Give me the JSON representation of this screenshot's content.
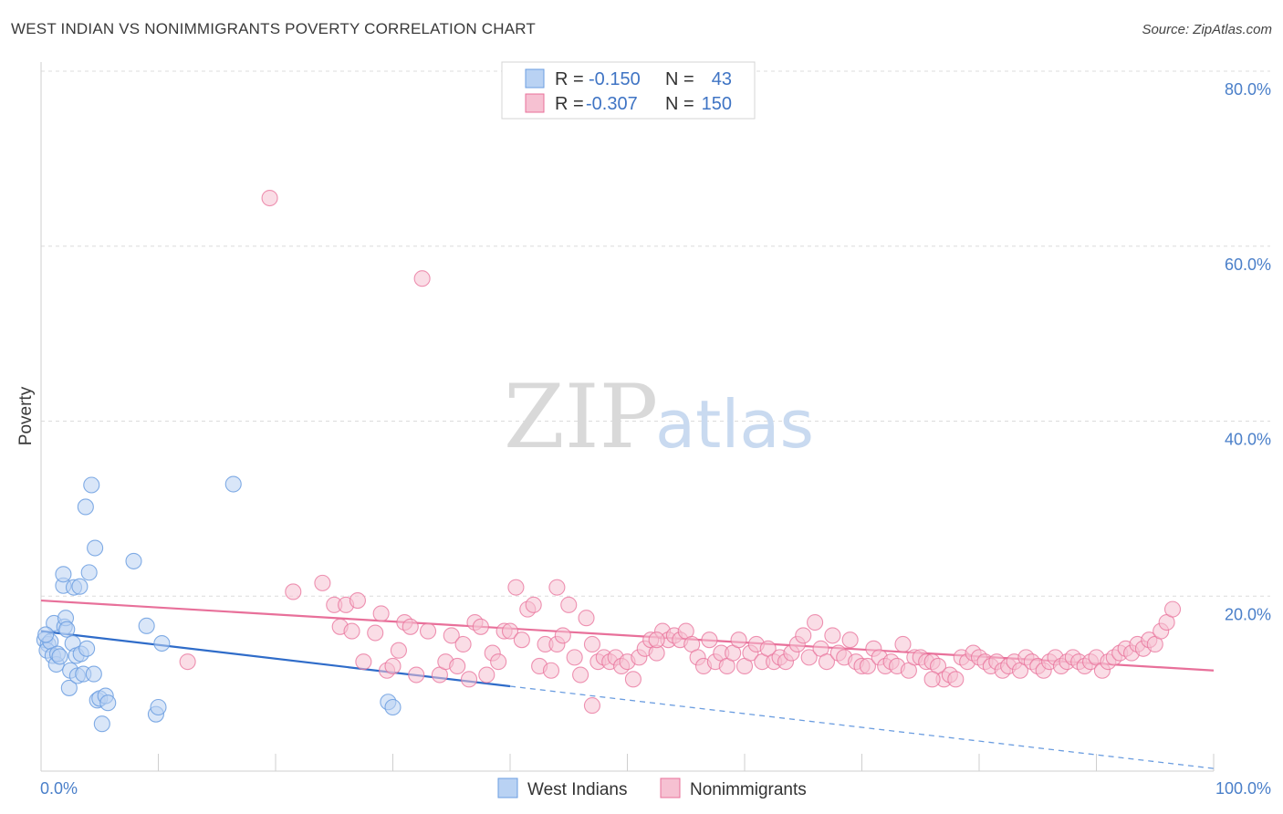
{
  "title": "WEST INDIAN VS NONIMMIGRANTS POVERTY CORRELATION CHART",
  "source": "Source: ZipAtlas.com",
  "watermark": {
    "zip": "ZIP",
    "atlas": "atlas"
  },
  "colors": {
    "blue": "#6b9de0",
    "blue_fill": "#b9d2f3",
    "pink": "#e8709a",
    "pink_fill": "#f6c1d2",
    "tick": "#4a7fc9"
  },
  "legend": {
    "r_label": "R =",
    "n_label": "N =",
    "rows": [
      {
        "r": "-0.150",
        "n": "43"
      },
      {
        "r": "-0.307",
        "n": "150"
      }
    ]
  },
  "chart_data": {
    "type": "scatter",
    "title": "WEST INDIAN VS NONIMMIGRANTS POVERTY CORRELATION CHART",
    "xlabel": "",
    "ylabel": "Poverty",
    "xlim": [
      0,
      100
    ],
    "ylim": [
      0,
      80
    ],
    "x_tick_labels": [
      "0.0%",
      "100.0%"
    ],
    "y_ticks": [
      20,
      40,
      60,
      80
    ],
    "y_tick_labels": [
      "20.0%",
      "40.0%",
      "60.0%",
      "80.0%"
    ],
    "grid": true,
    "legend_position": "top-center",
    "series": [
      {
        "name": "West Indians",
        "color": "#6b9de0",
        "trend": {
          "x0": 0,
          "y0": 16.0,
          "x1": 40,
          "y1": 9.7,
          "dashed_to": {
            "x": 100,
            "y": 0.3
          }
        },
        "points": [
          [
            0.3,
            15.0
          ],
          [
            0.6,
            14.5
          ],
          [
            0.5,
            13.8
          ],
          [
            0.8,
            14.8
          ],
          [
            1.0,
            13.2
          ],
          [
            1.1,
            16.9
          ],
          [
            1.3,
            12.2
          ],
          [
            1.4,
            13.4
          ],
          [
            1.6,
            13.1
          ],
          [
            1.9,
            21.2
          ],
          [
            1.9,
            22.5
          ],
          [
            2.0,
            16.5
          ],
          [
            2.1,
            17.5
          ],
          [
            2.2,
            16.2
          ],
          [
            2.4,
            9.5
          ],
          [
            2.5,
            11.5
          ],
          [
            2.7,
            14.6
          ],
          [
            2.8,
            21.0
          ],
          [
            3.0,
            13.2
          ],
          [
            3.1,
            10.9
          ],
          [
            3.3,
            21.1
          ],
          [
            3.4,
            13.4
          ],
          [
            3.6,
            11.1
          ],
          [
            3.8,
            30.2
          ],
          [
            3.9,
            14.0
          ],
          [
            4.1,
            22.7
          ],
          [
            4.3,
            32.7
          ],
          [
            4.5,
            11.1
          ],
          [
            4.6,
            25.5
          ],
          [
            4.8,
            8.1
          ],
          [
            5.0,
            8.3
          ],
          [
            5.2,
            5.4
          ],
          [
            5.5,
            8.6
          ],
          [
            5.7,
            7.8
          ],
          [
            7.9,
            24.0
          ],
          [
            9.0,
            16.6
          ],
          [
            9.8,
            6.5
          ],
          [
            10.0,
            7.3
          ],
          [
            10.3,
            14.6
          ],
          [
            16.4,
            32.8
          ],
          [
            29.6,
            7.9
          ],
          [
            30.0,
            7.3
          ],
          [
            0.4,
            15.6
          ]
        ]
      },
      {
        "name": "Nonimmigrants",
        "color": "#e8709a",
        "trend": {
          "x0": 0,
          "y0": 19.5,
          "x1": 100,
          "y1": 11.5
        },
        "points": [
          [
            12.5,
            12.5
          ],
          [
            19.5,
            65.5
          ],
          [
            21.5,
            20.5
          ],
          [
            24.0,
            21.5
          ],
          [
            25.0,
            19.0
          ],
          [
            25.5,
            16.5
          ],
          [
            26.0,
            19.0
          ],
          [
            26.5,
            16.0
          ],
          [
            27.0,
            19.5
          ],
          [
            27.5,
            12.5
          ],
          [
            28.5,
            15.8
          ],
          [
            29.0,
            18.0
          ],
          [
            29.5,
            11.5
          ],
          [
            30.0,
            12.0
          ],
          [
            30.5,
            13.8
          ],
          [
            31.0,
            17.0
          ],
          [
            32.0,
            11.0
          ],
          [
            32.5,
            56.3
          ],
          [
            33.0,
            16.0
          ],
          [
            34.0,
            11.0
          ],
          [
            34.5,
            12.5
          ],
          [
            35.0,
            15.5
          ],
          [
            35.5,
            12.0
          ],
          [
            36.0,
            14.5
          ],
          [
            37.0,
            17.0
          ],
          [
            37.5,
            16.5
          ],
          [
            38.0,
            11.0
          ],
          [
            38.5,
            13.5
          ],
          [
            39.0,
            12.5
          ],
          [
            39.5,
            16.0
          ],
          [
            40.0,
            16.0
          ],
          [
            40.5,
            21.0
          ],
          [
            41.0,
            15.0
          ],
          [
            41.5,
            18.5
          ],
          [
            42.0,
            19.0
          ],
          [
            42.5,
            12.0
          ],
          [
            43.0,
            14.5
          ],
          [
            43.5,
            11.5
          ],
          [
            44.0,
            14.5
          ],
          [
            44.5,
            15.5
          ],
          [
            45.0,
            19.0
          ],
          [
            45.5,
            13.0
          ],
          [
            46.0,
            11.0
          ],
          [
            46.5,
            17.5
          ],
          [
            47.0,
            14.5
          ],
          [
            47.5,
            12.5
          ],
          [
            48.0,
            13.0
          ],
          [
            48.5,
            12.5
          ],
          [
            49.0,
            13.0
          ],
          [
            49.5,
            12.0
          ],
          [
            50.0,
            12.5
          ],
          [
            50.5,
            10.5
          ],
          [
            51.0,
            13.0
          ],
          [
            51.5,
            14.0
          ],
          [
            52.0,
            15.0
          ],
          [
            52.5,
            13.5
          ],
          [
            53.0,
            16.0
          ],
          [
            53.5,
            15.0
          ],
          [
            54.0,
            15.5
          ],
          [
            54.5,
            15.0
          ],
          [
            55.0,
            16.0
          ],
          [
            55.5,
            14.5
          ],
          [
            56.0,
            13.0
          ],
          [
            56.5,
            12.0
          ],
          [
            57.0,
            15.0
          ],
          [
            57.5,
            12.5
          ],
          [
            58.0,
            13.5
          ],
          [
            58.5,
            12.0
          ],
          [
            59.0,
            13.5
          ],
          [
            59.5,
            15.0
          ],
          [
            60.0,
            12.0
          ],
          [
            60.5,
            13.5
          ],
          [
            61.0,
            14.5
          ],
          [
            61.5,
            12.5
          ],
          [
            62.0,
            14.0
          ],
          [
            62.5,
            12.5
          ],
          [
            63.0,
            13.0
          ],
          [
            63.5,
            12.5
          ],
          [
            64.0,
            13.5
          ],
          [
            64.5,
            14.5
          ],
          [
            65.0,
            15.5
          ],
          [
            65.5,
            13.0
          ],
          [
            66.0,
            17.0
          ],
          [
            66.5,
            14.0
          ],
          [
            67.0,
            12.5
          ],
          [
            67.5,
            15.5
          ],
          [
            68.0,
            13.5
          ],
          [
            68.5,
            13.0
          ],
          [
            69.0,
            15.0
          ],
          [
            69.5,
            12.5
          ],
          [
            70.0,
            12.0
          ],
          [
            70.5,
            12.0
          ],
          [
            71.0,
            14.0
          ],
          [
            71.5,
            13.0
          ],
          [
            72.0,
            12.0
          ],
          [
            72.5,
            12.5
          ],
          [
            73.0,
            12.0
          ],
          [
            73.5,
            14.5
          ],
          [
            74.0,
            11.5
          ],
          [
            74.5,
            13.0
          ],
          [
            75.0,
            13.0
          ],
          [
            75.5,
            12.5
          ],
          [
            76.0,
            12.5
          ],
          [
            76.5,
            12.0
          ],
          [
            77.0,
            10.5
          ],
          [
            77.5,
            11.0
          ],
          [
            78.0,
            10.5
          ],
          [
            78.5,
            13.0
          ],
          [
            79.0,
            12.5
          ],
          [
            79.5,
            13.5
          ],
          [
            80.0,
            13.0
          ],
          [
            80.5,
            12.5
          ],
          [
            81.0,
            12.0
          ],
          [
            81.5,
            12.5
          ],
          [
            82.0,
            11.5
          ],
          [
            82.5,
            12.0
          ],
          [
            83.0,
            12.5
          ],
          [
            83.5,
            11.5
          ],
          [
            84.0,
            13.0
          ],
          [
            84.5,
            12.5
          ],
          [
            85.0,
            12.0
          ],
          [
            85.5,
            11.5
          ],
          [
            86.0,
            12.5
          ],
          [
            86.5,
            13.0
          ],
          [
            87.0,
            12.0
          ],
          [
            87.5,
            12.5
          ],
          [
            88.0,
            13.0
          ],
          [
            88.5,
            12.5
          ],
          [
            89.0,
            12.0
          ],
          [
            89.5,
            12.5
          ],
          [
            90.0,
            13.0
          ],
          [
            90.5,
            11.5
          ],
          [
            91.0,
            12.5
          ],
          [
            91.5,
            13.0
          ],
          [
            92.0,
            13.5
          ],
          [
            92.5,
            14.0
          ],
          [
            93.0,
            13.5
          ],
          [
            93.5,
            14.5
          ],
          [
            94.0,
            14.0
          ],
          [
            94.5,
            15.0
          ],
          [
            95.0,
            14.5
          ],
          [
            95.5,
            16.0
          ],
          [
            96.0,
            17.0
          ],
          [
            96.5,
            18.5
          ],
          [
            76.0,
            10.5
          ],
          [
            47.0,
            7.5
          ],
          [
            31.5,
            16.5
          ],
          [
            36.5,
            10.5
          ],
          [
            52.5,
            15.0
          ],
          [
            44.0,
            21.0
          ]
        ]
      }
    ]
  }
}
